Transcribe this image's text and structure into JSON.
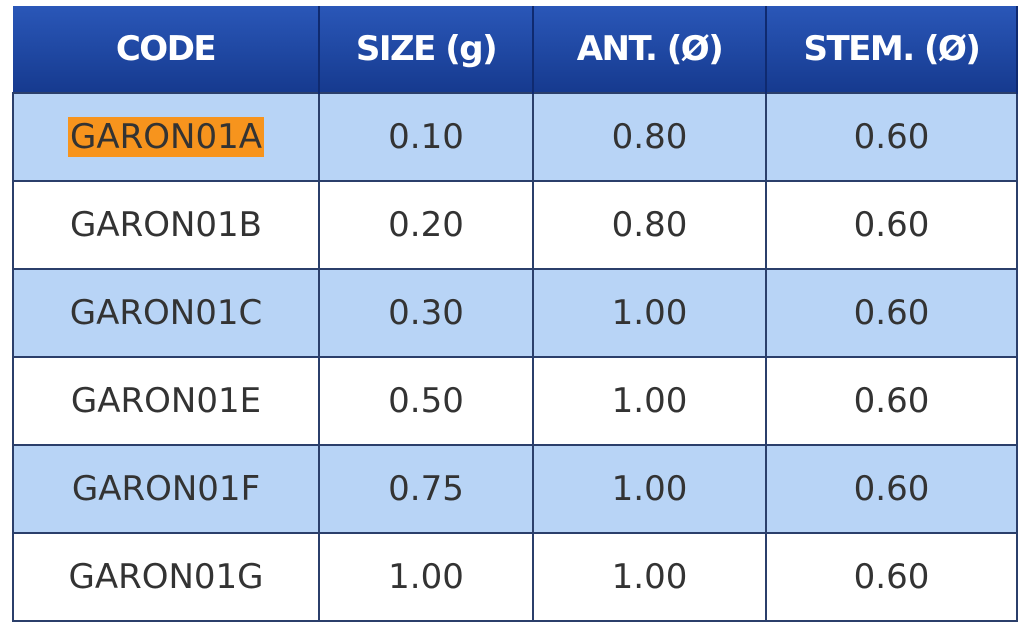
{
  "table": {
    "header": [
      "CODE",
      "SIZE (g)",
      "ANT. (Ø)",
      "STEM. (Ø)"
    ],
    "rows": [
      [
        "GARON01A",
        "0.10",
        "0.80",
        "0.60"
      ],
      [
        "GARON01B",
        "0.20",
        "0.80",
        "0.60"
      ],
      [
        "GARON01C",
        "0.30",
        "1.00",
        "0.60"
      ],
      [
        "GARON01E",
        "0.50",
        "1.00",
        "0.60"
      ],
      [
        "GARON01F",
        "0.75",
        "1.00",
        "0.60"
      ],
      [
        "GARON01G",
        "1.00",
        "1.00",
        "0.60"
      ]
    ]
  }
}
